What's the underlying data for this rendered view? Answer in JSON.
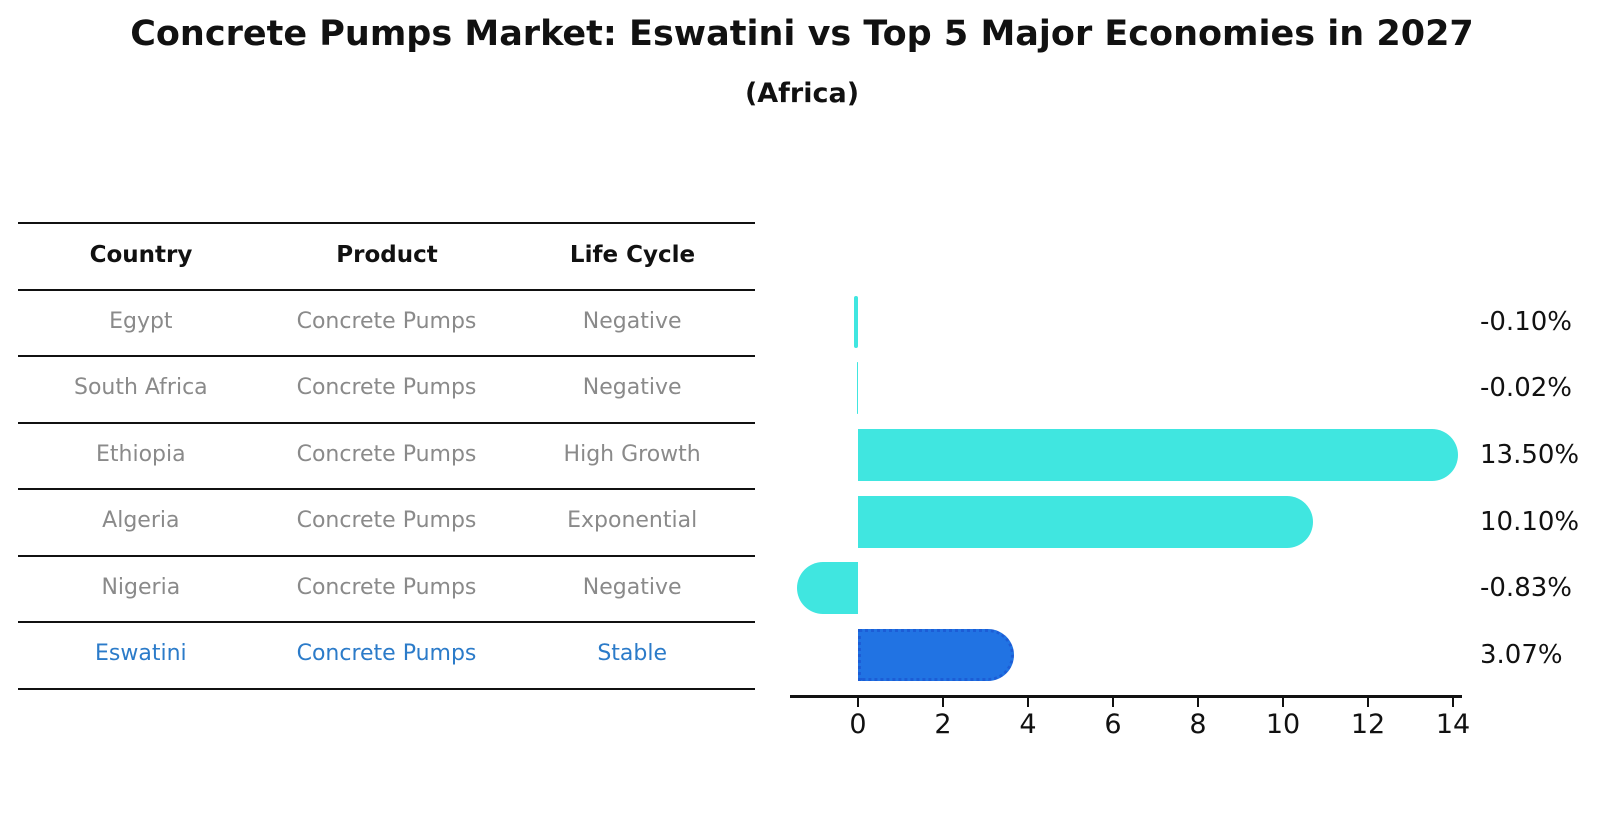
{
  "title": "Concrete Pumps Market: Eswatini vs Top 5 Major Economies in 2027",
  "subtitle": "(Africa)",
  "table": {
    "headers": [
      "Country",
      "Product",
      "Life Cycle"
    ],
    "rows": [
      {
        "country": "Egypt",
        "product": "Concrete Pumps",
        "life_cycle": "Negative",
        "highlight": false
      },
      {
        "country": "South Africa",
        "product": "Concrete Pumps",
        "life_cycle": "Negative",
        "highlight": false
      },
      {
        "country": "Ethiopia",
        "product": "Concrete Pumps",
        "life_cycle": "High Growth",
        "highlight": false
      },
      {
        "country": "Algeria",
        "product": "Concrete Pumps",
        "life_cycle": "Exponential",
        "highlight": false
      },
      {
        "country": "Nigeria",
        "product": "Concrete Pumps",
        "life_cycle": "Negative",
        "highlight": false
      },
      {
        "country": "Eswatini",
        "product": "Concrete Pumps",
        "life_cycle": "Stable",
        "highlight": true
      }
    ]
  },
  "chart_data": {
    "type": "bar",
    "orientation": "horizontal",
    "title": "Concrete Pumps Market: Eswatini vs Top 5 Major Economies in 2027",
    "subtitle": "(Africa)",
    "categories": [
      "Egypt",
      "South Africa",
      "Ethiopia",
      "Algeria",
      "Nigeria",
      "Eswatini"
    ],
    "values": [
      -0.1,
      -0.02,
      13.5,
      10.1,
      -0.83,
      3.07
    ],
    "value_labels": [
      "-0.10%",
      "-0.02%",
      "13.50%",
      "10.10%",
      "-0.83%",
      "3.07%"
    ],
    "x_ticks": [
      0,
      2,
      4,
      6,
      8,
      10,
      12,
      14
    ],
    "xlim": [
      -1.6,
      14.6
    ],
    "grid": false,
    "legend": "none",
    "bar_color": "#40E6E0",
    "highlight_index": 5,
    "highlight_color": "#2173E3",
    "highlight_border_color": "#1c5dd6",
    "highlight_border_style": "dotted"
  },
  "colors": {
    "background": "#ffffff",
    "header_text": "#111111",
    "row_text": "#8a8a8a",
    "highlight_row_text": "#2b7bc9",
    "table_line": "#111111",
    "axis": "#111111"
  }
}
